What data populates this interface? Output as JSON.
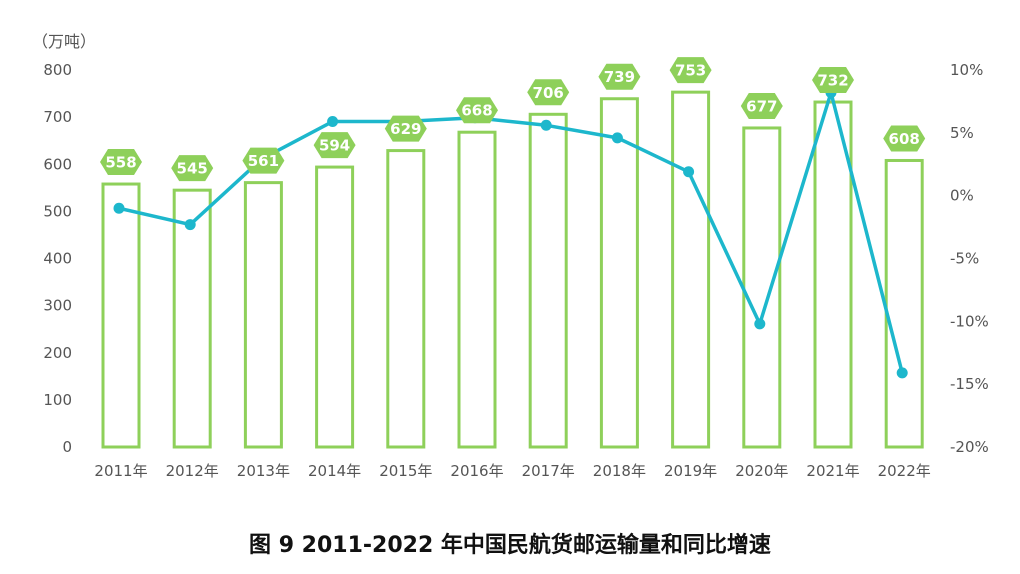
{
  "chart_data": {
    "type": "bar",
    "title": "图 9 2011-2022 年中国民航货邮运输量和同比增速",
    "y_unit_label": "（万吨）",
    "categories": [
      "2011年",
      "2012年",
      "2013年",
      "2014年",
      "2015年",
      "2016年",
      "2017年",
      "2018年",
      "2019年",
      "2020年",
      "2021年",
      "2022年"
    ],
    "series": [
      {
        "type": "bar",
        "values": [
          558,
          545,
          561,
          594,
          629,
          668,
          706,
          739,
          753,
          677,
          732,
          608
        ],
        "color": "#8ED05A"
      },
      {
        "type": "line",
        "axis": "right",
        "values": [
          -1.0,
          -2.3,
          2.9,
          5.9,
          5.9,
          6.2,
          5.6,
          4.6,
          1.9,
          -10.2,
          8.2,
          -14.1
        ],
        "color": "#1DB7CC"
      }
    ],
    "data_labels": [
      "558",
      "545",
      "561",
      "594",
      "629",
      "668",
      "706",
      "739",
      "753",
      "677",
      "732",
      "608"
    ],
    "ylim": [
      0,
      800
    ],
    "y_ticks": [
      "0",
      "100",
      "200",
      "300",
      "400",
      "500",
      "600",
      "700",
      "800"
    ],
    "y2lim": [
      -20,
      10
    ],
    "y2_ticks": [
      "-20%",
      "-15%",
      "-10%",
      "-5%",
      "0%",
      "5%",
      "10%"
    ],
    "label_color": "#8ED05A",
    "grid": false
  }
}
